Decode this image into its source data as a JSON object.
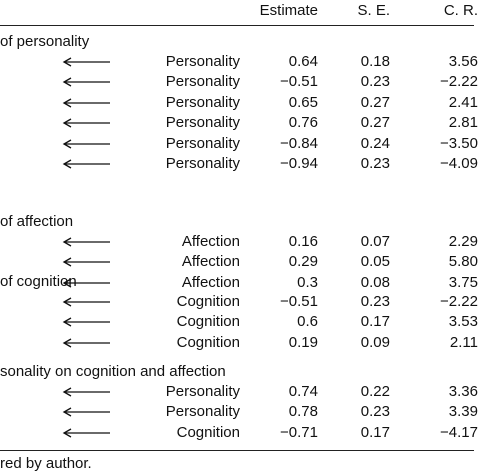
{
  "header": {
    "estimate": "Estimate",
    "se": "S. E.",
    "cr": "C. R."
  },
  "sections": [
    {
      "title": "of personality",
      "rows": [
        {
          "label": "Personality",
          "estimate": "0.64",
          "se": "0.18",
          "cr": "3.56"
        },
        {
          "label": "Personality",
          "estimate": "−0.51",
          "se": "0.23",
          "cr": "−2.22"
        },
        {
          "label": "Personality",
          "estimate": "0.65",
          "se": "0.27",
          "cr": "2.41"
        },
        {
          "label": "Personality",
          "estimate": "0.76",
          "se": "0.27",
          "cr": "2.81"
        },
        {
          "label": "Personality",
          "estimate": "−0.84",
          "se": "0.24",
          "cr": "−3.50"
        },
        {
          "label": "Personality",
          "estimate": "−0.94",
          "se": "0.23",
          "cr": "−4.09"
        }
      ]
    },
    {
      "title": "of affection",
      "rows": [
        {
          "label": "Affection",
          "estimate": "0.16",
          "se": "0.07",
          "cr": "2.29"
        },
        {
          "label": "Affection",
          "estimate": "0.29",
          "se": "0.05",
          "cr": "5.80"
        },
        {
          "label": "Affection",
          "estimate": "0.3",
          "se": "0.08",
          "cr": "3.75"
        }
      ]
    },
    {
      "title": "of cognition",
      "rows": [
        {
          "label": "Cognition",
          "estimate": "−0.51",
          "se": "0.23",
          "cr": "−2.22"
        },
        {
          "label": "Cognition",
          "estimate": "0.6",
          "se": "0.17",
          "cr": "3.53"
        },
        {
          "label": "Cognition",
          "estimate": "0.19",
          "se": "0.09",
          "cr": "2.11"
        }
      ]
    },
    {
      "title": "sonality on cognition and affection",
      "rows": [
        {
          "label": "Personality",
          "estimate": "0.74",
          "se": "0.22",
          "cr": "3.36"
        },
        {
          "label": "Personality",
          "estimate": "0.78",
          "se": "0.23",
          "cr": "3.39"
        },
        {
          "label": "Cognition",
          "estimate": "−0.71",
          "se": "0.17",
          "cr": "−4.17"
        }
      ]
    }
  ],
  "note": "red by author.",
  "colors": {
    "text": "#111111",
    "rule": "#222222",
    "background": "#ffffff"
  },
  "icons": {
    "arrow": "left-arrow-icon"
  }
}
